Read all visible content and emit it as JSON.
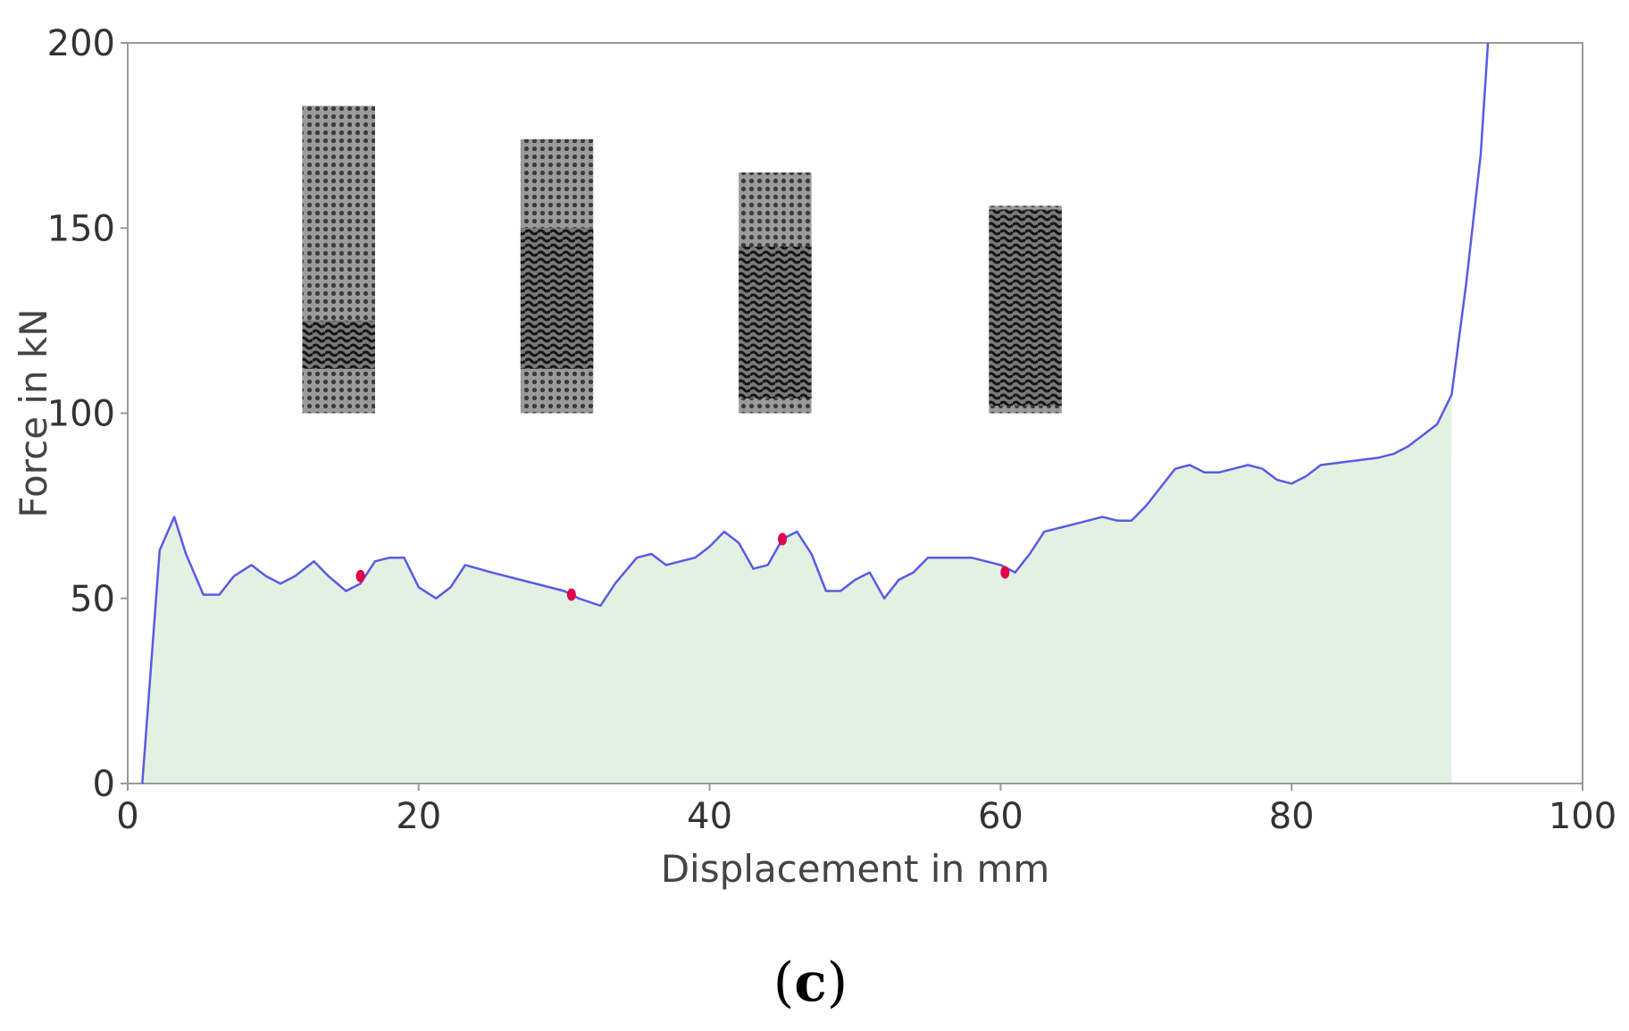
{
  "chart_data": {
    "type": "area",
    "title": "",
    "xlabel": "Displacement in mm",
    "ylabel": "Force in kN",
    "xlim": [
      0,
      100
    ],
    "ylim": [
      0,
      200
    ],
    "xticks": [
      0,
      20,
      40,
      60,
      80,
      100
    ],
    "yticks": [
      0,
      50,
      100,
      150,
      200
    ],
    "grid": false,
    "legend": "none",
    "panel_label": {
      "open": "(",
      "letter": "c",
      "close": ")"
    },
    "colors": {
      "line": "#5a5ae6",
      "fill": "#e3f1e3",
      "marker": "#e0004a",
      "frame": "#999999"
    },
    "series": [
      {
        "x": [
          1.0,
          2.2,
          3.2,
          4.0,
          5.2,
          6.3,
          7.3,
          8.5,
          9.5,
          10.5,
          11.5,
          12.8,
          13.8,
          15.0,
          16.0,
          17.0,
          18.0,
          19.0,
          20.0,
          21.2,
          22.2,
          23.2,
          25.0,
          27.0,
          30.0,
          31.0,
          32.5,
          33.5,
          35.0,
          36.0,
          37.0,
          38.0,
          39.0,
          40.0,
          41.0,
          42.0,
          43.0,
          44.0,
          45.0,
          46.0,
          47.0,
          48.0,
          49.0,
          50.0,
          51.0,
          52.0,
          53.0,
          54.0,
          55.0,
          56.0,
          57.0,
          58.0,
          59.0,
          60.0,
          61.0,
          62.0,
          63.0,
          64.0,
          65.0,
          67.0,
          68.0,
          69.0,
          70.0,
          71.0,
          72.0,
          73.0,
          74.0,
          75.0,
          76.0,
          77.0,
          78.0,
          79.0,
          80.0,
          81.0,
          82.0,
          84.0,
          86.0,
          87.0,
          88.0,
          89.0,
          90.0,
          91.0,
          92.0,
          93.0,
          93.5
        ],
        "y": [
          0,
          63,
          72,
          62,
          51,
          51,
          56,
          59,
          56,
          54,
          56,
          60,
          56,
          52,
          54,
          60,
          61,
          61,
          53,
          50,
          53,
          59,
          57,
          55,
          52,
          50,
          48,
          54,
          61,
          62,
          59,
          60,
          61,
          64,
          68,
          65,
          58,
          59,
          66,
          68,
          62,
          52,
          52,
          55,
          57,
          50,
          55,
          57,
          61,
          61,
          61,
          61,
          60,
          59,
          57,
          62,
          68,
          69,
          70,
          72,
          71,
          71,
          75,
          80,
          85,
          86,
          84,
          84,
          85,
          86,
          85,
          82,
          81,
          83,
          86,
          87,
          88,
          89,
          91,
          94,
          97,
          105,
          135,
          170,
          200
        ]
      }
    ],
    "fill_end_x": 91.0,
    "markers": [
      {
        "x": 16.0,
        "y": 56
      },
      {
        "x": 30.5,
        "y": 51
      },
      {
        "x": 45.0,
        "y": 66
      },
      {
        "x": 60.3,
        "y": 57
      }
    ],
    "insets": [
      {
        "x0": 12.0,
        "x1": 17.0,
        "y0": 100,
        "y1": 183,
        "crush_from": 112,
        "crush_to": 125
      },
      {
        "x0": 27.0,
        "x1": 32.0,
        "y0": 100,
        "y1": 174,
        "crush_from": 112,
        "crush_to": 150
      },
      {
        "x0": 42.0,
        "x1": 47.0,
        "y0": 100,
        "y1": 165,
        "crush_from": 104,
        "crush_to": 145
      },
      {
        "x0": 59.2,
        "x1": 64.2,
        "y0": 100,
        "y1": 156,
        "crush_from": 102,
        "crush_to": 155
      }
    ]
  }
}
